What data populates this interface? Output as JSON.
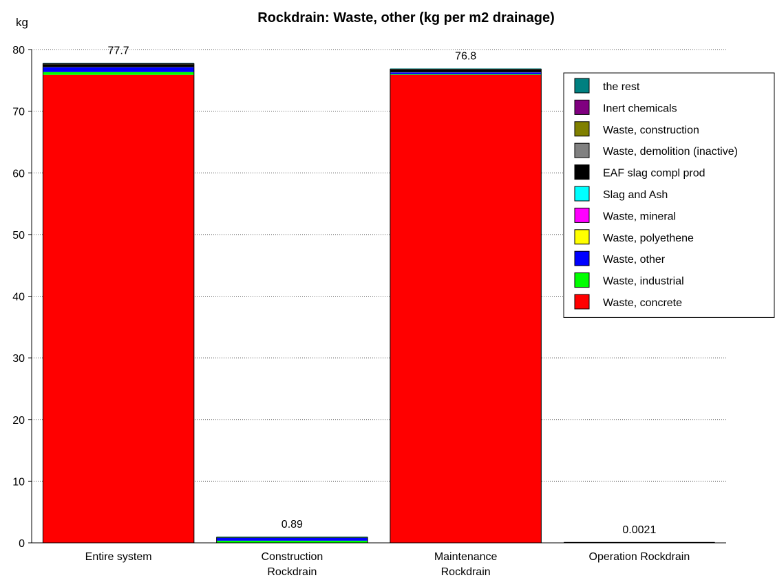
{
  "chart_data": {
    "type": "bar",
    "stacked": true,
    "title": "Rockdrain: Waste, other (kg per m2 drainage)",
    "ylabel": "kg",
    "xlabel": "",
    "ylim": [
      0,
      80
    ],
    "yticks": [
      0,
      10,
      20,
      30,
      40,
      50,
      60,
      70,
      80
    ],
    "grid": "horizontal-dotted",
    "legend_position": "top-right",
    "categories": [
      [
        "Entire system"
      ],
      [
        "Construction",
        "Rockdrain"
      ],
      [
        "Maintenance",
        "Rockdrain"
      ],
      [
        "Operation Rockdrain"
      ]
    ],
    "totals": [
      "77.7",
      "0.89",
      "76.8",
      "0.0021"
    ],
    "series": [
      {
        "name": "Waste, concrete",
        "color": "#ff0000",
        "values": [
          75.9,
          0.0,
          75.9,
          0.0
        ]
      },
      {
        "name": "Waste, industrial",
        "color": "#00ff00",
        "values": [
          0.45,
          0.35,
          0.1,
          0.0
        ]
      },
      {
        "name": "Waste, other",
        "color": "#0000ff",
        "values": [
          0.75,
          0.45,
          0.3,
          0.0
        ]
      },
      {
        "name": "Waste, polyethene",
        "color": "#ffff00",
        "values": [
          0.02,
          0.01,
          0.01,
          0.0
        ]
      },
      {
        "name": "Waste, mineral",
        "color": "#ff00ff",
        "values": [
          0.01,
          0.0,
          0.01,
          0.0
        ]
      },
      {
        "name": "Slag and Ash",
        "color": "#00ffff",
        "values": [
          0.02,
          0.01,
          0.01,
          0.0
        ]
      },
      {
        "name": "EAF slag compl prod",
        "color": "#000000",
        "values": [
          0.45,
          0.06,
          0.39,
          0.0021
        ]
      },
      {
        "name": "Waste, demolition (inactive)",
        "color": "#808080",
        "values": [
          0.03,
          0.0,
          0.03,
          0.0
        ]
      },
      {
        "name": "Waste, construction",
        "color": "#808000",
        "values": [
          0.03,
          0.0,
          0.03,
          0.0
        ]
      },
      {
        "name": "Inert chemicals",
        "color": "#800080",
        "values": [
          0.02,
          0.0,
          0.02,
          0.0
        ]
      },
      {
        "name": "the rest",
        "color": "#008080",
        "values": [
          0.02,
          0.01,
          0.01,
          0.0
        ]
      }
    ]
  }
}
